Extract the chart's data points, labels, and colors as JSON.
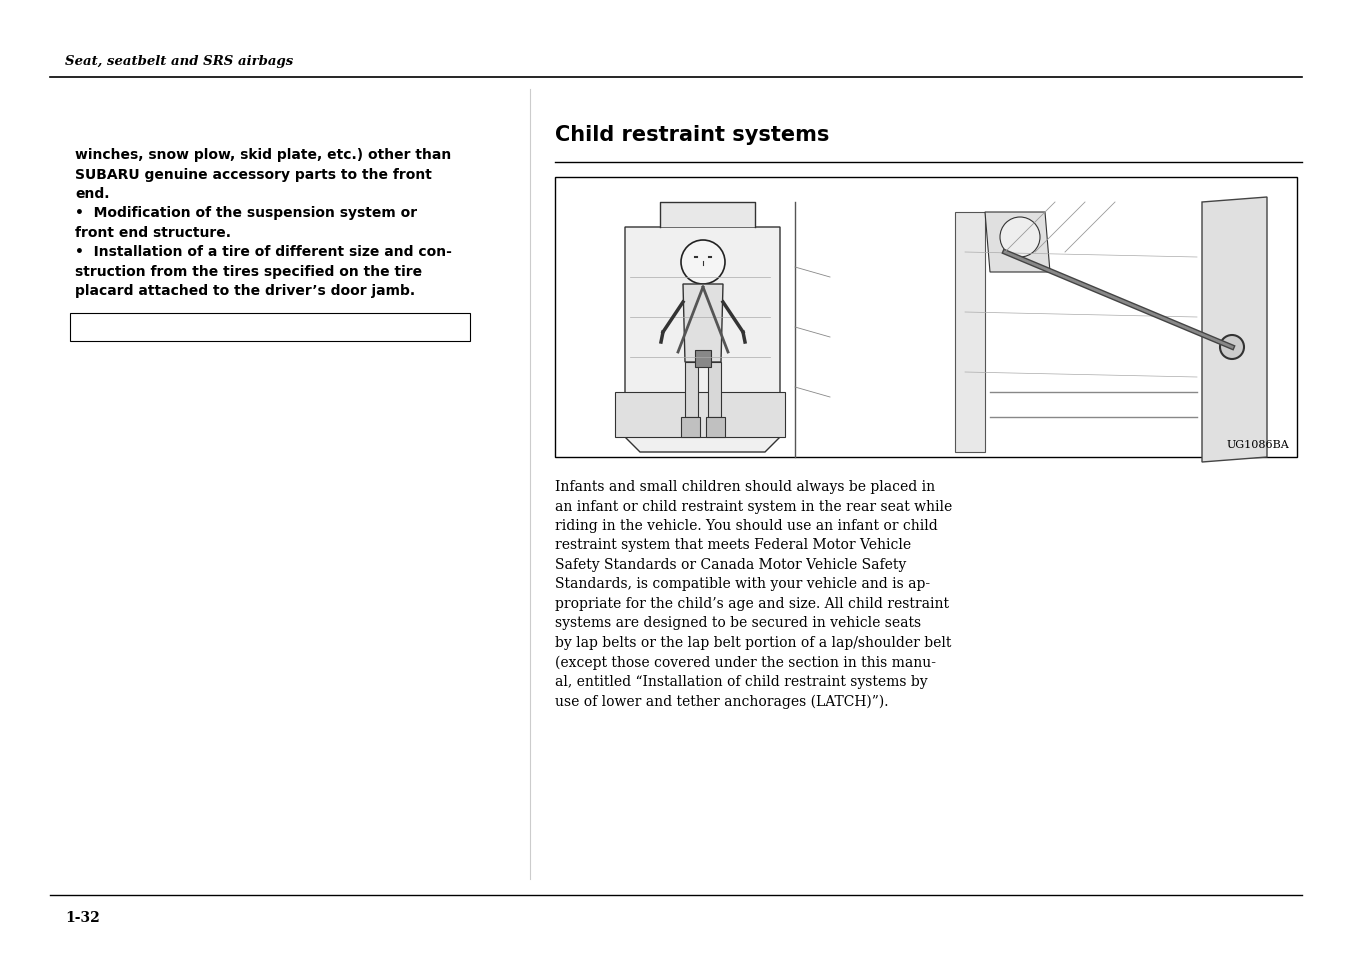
{
  "bg_color": "#ffffff",
  "page_width": 13.52,
  "page_height": 9.54,
  "dpi": 100,
  "header_text": "Seat, seatbelt and SRS airbags",
  "page_number": "1-32",
  "section_title": "Child restraint systems",
  "image_caption": "UG1086BA",
  "left_text": [
    "winches, snow plow, skid plate, etc.) other than",
    "SUBARU genuine accessory parts to the front",
    "end.",
    "•  Modification of the suspension system or",
    "front end structure.",
    "•  Installation of a tire of different size and con-",
    "struction from the tires specified on the tire",
    "placard attached to the driver’s door jamb."
  ],
  "body_text_lines": [
    "Infants and small children should always be placed in",
    "an infant or child restraint system in the rear seat while",
    "riding in the vehicle. You should use an infant or child",
    "restraint system that meets Federal Motor Vehicle",
    "Safety Standards or Canada Motor Vehicle Safety",
    "Standards, is compatible with your vehicle and is ap-",
    "propriate for the child’s age and size. All child restraint",
    "systems are designed to be secured in vehicle seats",
    "by lap belts or the lap belt portion of a lap/shoulder belt",
    "(except those covered under the section in this manu-",
    "al, entitled “Installation of child restraint systems by",
    "use of lower and tether anchorages (LATCH)”)."
  ],
  "font_size_header": 9.5,
  "font_size_left": 10,
  "font_size_body": 10,
  "font_size_title": 15,
  "font_size_page": 10,
  "font_size_caption": 8
}
